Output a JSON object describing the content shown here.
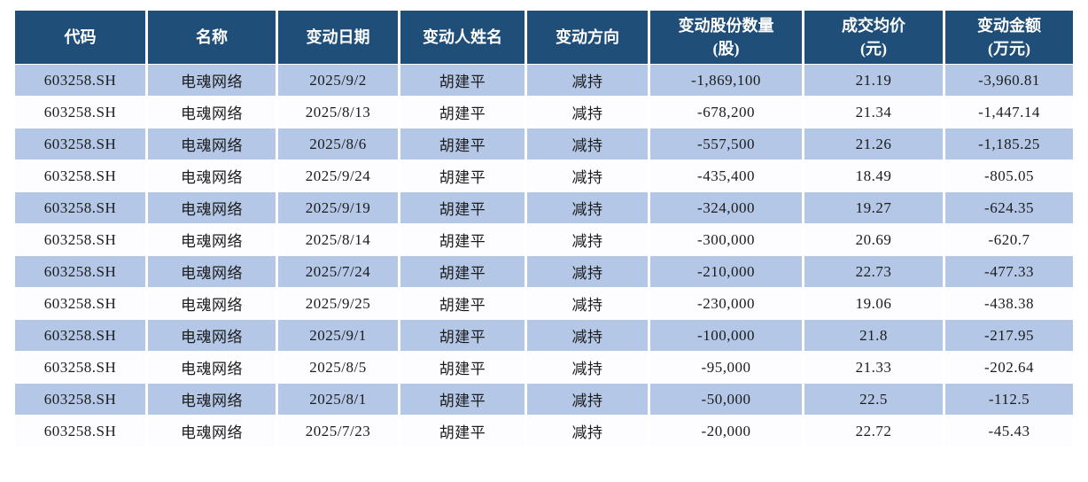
{
  "chart_data": {
    "type": "table",
    "title": "",
    "columns": [
      "代码",
      "名称",
      "变动日期",
      "变动人姓名",
      "变动方向",
      "变动股份数量(股)",
      "成交均价(元)",
      "变动金额(万元)"
    ],
    "rows": [
      [
        "603258.SH",
        "电魂网络",
        "2025/9/2",
        "胡建平",
        "减持",
        "-1,869,100",
        "21.19",
        "-3,960.81"
      ],
      [
        "603258.SH",
        "电魂网络",
        "2025/8/13",
        "胡建平",
        "减持",
        "-678,200",
        "21.34",
        "-1,447.14"
      ],
      [
        "603258.SH",
        "电魂网络",
        "2025/8/6",
        "胡建平",
        "减持",
        "-557,500",
        "21.26",
        "-1,185.25"
      ],
      [
        "603258.SH",
        "电魂网络",
        "2025/9/24",
        "胡建平",
        "减持",
        "-435,400",
        "18.49",
        "-805.05"
      ],
      [
        "603258.SH",
        "电魂网络",
        "2025/9/19",
        "胡建平",
        "减持",
        "-324,000",
        "19.27",
        "-624.35"
      ],
      [
        "603258.SH",
        "电魂网络",
        "2025/8/14",
        "胡建平",
        "减持",
        "-300,000",
        "20.69",
        "-620.7"
      ],
      [
        "603258.SH",
        "电魂网络",
        "2025/7/24",
        "胡建平",
        "减持",
        "-210,000",
        "22.73",
        "-477.33"
      ],
      [
        "603258.SH",
        "电魂网络",
        "2025/9/25",
        "胡建平",
        "减持",
        "-230,000",
        "19.06",
        "-438.38"
      ],
      [
        "603258.SH",
        "电魂网络",
        "2025/9/1",
        "胡建平",
        "减持",
        "-100,000",
        "21.8",
        "-217.95"
      ],
      [
        "603258.SH",
        "电魂网络",
        "2025/8/5",
        "胡建平",
        "减持",
        "-95,000",
        "21.33",
        "-202.64"
      ],
      [
        "603258.SH",
        "电魂网络",
        "2025/8/1",
        "胡建平",
        "减持",
        "-50,000",
        "22.5",
        "-112.5"
      ],
      [
        "603258.SH",
        "电魂网络",
        "2025/7/23",
        "胡建平",
        "减持",
        "-20,000",
        "22.72",
        "-45.43"
      ]
    ]
  },
  "table": {
    "header_labels": [
      "代码",
      "名称",
      "变动日期",
      "变动人姓名",
      "变动方向",
      "变动股份数量\n(股)",
      "成交均价\n(元)",
      "变动金额\n(万元)"
    ],
    "column_keys": [
      "code",
      "name",
      "change-date",
      "person-name",
      "direction",
      "share-change",
      "avg-price",
      "amount-change"
    ],
    "colors": {
      "header_bg": "#1F4E79",
      "header_text": "#FFFFFF",
      "row_odd_bg": "#B4C7E7",
      "row_even_bg": "#FDFDFF",
      "body_text": "#1B1B1B"
    }
  }
}
